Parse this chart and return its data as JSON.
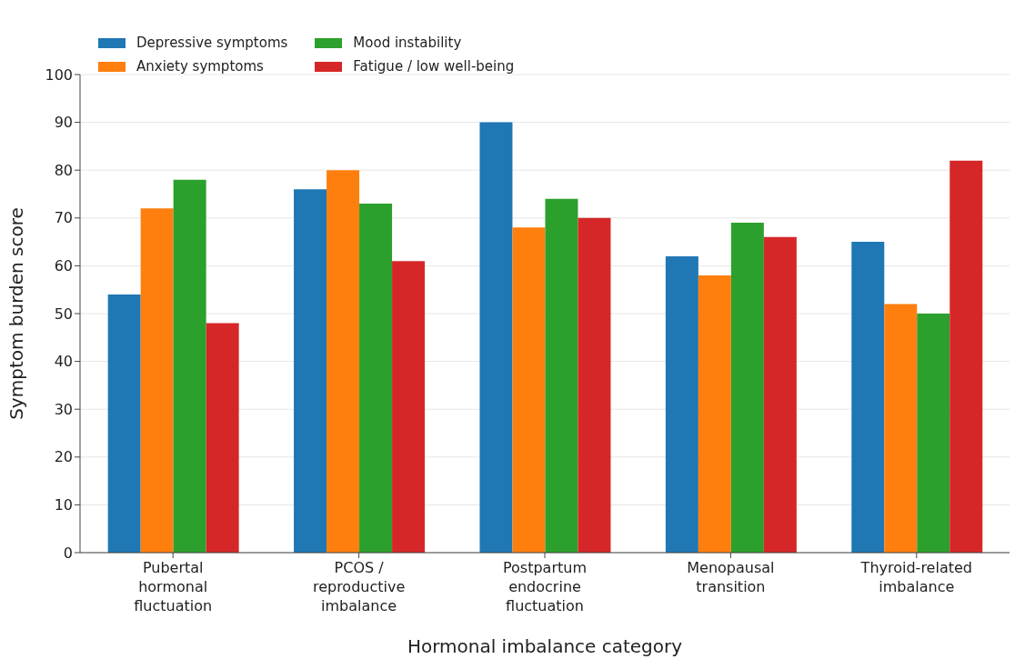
{
  "chart_data": {
    "type": "bar",
    "xlabel": "Hormonal imbalance category",
    "ylabel": "Symptom burden score",
    "categories": [
      "Pubertal hormonal fluctuation",
      "PCOS / reproductive imbalance",
      "Postpartum endocrine fluctuation",
      "Menopausal transition",
      "Thyroid-related imbalance"
    ],
    "series": [
      {
        "name": "Depressive symptoms",
        "color": "#1f77b4",
        "values": [
          54,
          76,
          90,
          62,
          65
        ]
      },
      {
        "name": "Anxiety symptoms",
        "color": "#ff7f0e",
        "values": [
          72,
          80,
          68,
          58,
          52
        ]
      },
      {
        "name": "Mood instability",
        "color": "#2ca02c",
        "values": [
          78,
          73,
          74,
          69,
          50
        ]
      },
      {
        "name": "Fatigue / low well-being",
        "color": "#d62728",
        "values": [
          48,
          61,
          70,
          66,
          82
        ]
      }
    ],
    "ylim": [
      0,
      100
    ],
    "yticks": [
      0,
      10,
      20,
      30,
      40,
      50,
      60,
      70,
      80,
      90,
      100
    ],
    "grid": "y",
    "legend": "top left"
  }
}
